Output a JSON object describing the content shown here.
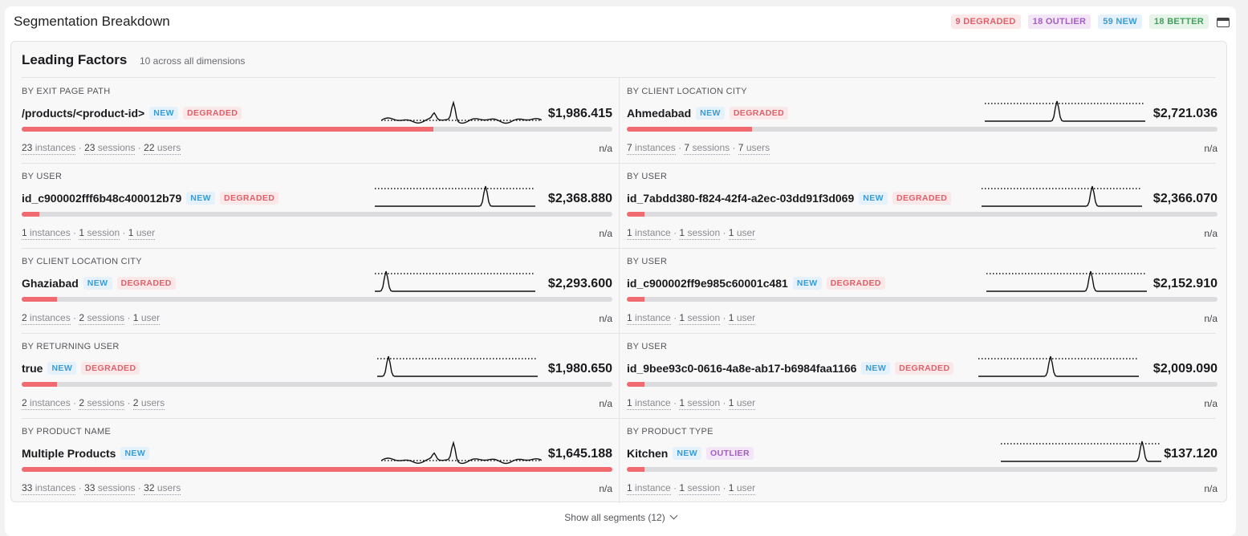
{
  "panel": {
    "title": "Segmentation Breakdown",
    "summary_badges": [
      {
        "label": "9 DEGRADED",
        "kind": "degraded"
      },
      {
        "label": "18 OUTLIER",
        "kind": "outlier"
      },
      {
        "label": "59 NEW",
        "kind": "new"
      },
      {
        "label": "18 BETTER",
        "kind": "better"
      }
    ],
    "collapse_icon": "window-collapse-icon"
  },
  "card": {
    "title": "Leading Factors",
    "subtitle": "10 across all dimensions"
  },
  "factors": [
    {
      "dimension": "BY EXIT PAGE PATH",
      "name": "/products/<product-id>",
      "tags": [
        "NEW",
        "DEGRADED"
      ],
      "value": "$1,986.415",
      "bar_fraction": 0.697,
      "stats": {
        "instances": "23",
        "instances_label": "instances",
        "sessions": "23",
        "sessions_label": "sessions",
        "users": "22",
        "users_label": "users"
      },
      "change": "n/a",
      "spark": "busy"
    },
    {
      "dimension": "BY CLIENT LOCATION CITY",
      "name": "Ahmedabad",
      "tags": [
        "NEW",
        "DEGRADED"
      ],
      "value": "$2,721.036",
      "bar_fraction": 0.212,
      "stats": {
        "instances": "7",
        "instances_label": "instances",
        "sessions": "7",
        "sessions_label": "sessions",
        "users": "7",
        "users_label": "users"
      },
      "change": "n/a",
      "spark": "peak-mid"
    },
    {
      "dimension": "BY USER",
      "name": "id_c900002fff6b48c400012b79",
      "tags": [
        "NEW",
        "DEGRADED"
      ],
      "value": "$2,368.880",
      "bar_fraction": 0.03,
      "stats": {
        "instances": "1",
        "instances_label": "instances",
        "sessions": "1",
        "sessions_label": "session",
        "users": "1",
        "users_label": "user"
      },
      "change": "n/a",
      "spark": "peak-right"
    },
    {
      "dimension": "BY USER",
      "name": "id_7abdd380-f824-42f4-a2ec-03dd91f3d069",
      "tags": [
        "NEW",
        "DEGRADED"
      ],
      "value": "$2,366.070",
      "bar_fraction": 0.03,
      "stats": {
        "instances": "1",
        "instances_label": "instance",
        "sessions": "1",
        "sessions_label": "session",
        "users": "1",
        "users_label": "user"
      },
      "change": "n/a",
      "spark": "peak-right"
    },
    {
      "dimension": "BY CLIENT LOCATION CITY",
      "name": "Ghaziabad",
      "tags": [
        "NEW",
        "DEGRADED"
      ],
      "value": "$2,293.600",
      "bar_fraction": 0.06,
      "stats": {
        "instances": "2",
        "instances_label": "instances",
        "sessions": "2",
        "sessions_label": "sessions",
        "users": "1",
        "users_label": "user"
      },
      "change": "n/a",
      "spark": "peak-left"
    },
    {
      "dimension": "BY USER",
      "name": "id_c900002ff9e985c60001c481",
      "tags": [
        "NEW",
        "DEGRADED"
      ],
      "value": "$2,152.910",
      "bar_fraction": 0.03,
      "stats": {
        "instances": "1",
        "instances_label": "instance",
        "sessions": "1",
        "sessions_label": "session",
        "users": "1",
        "users_label": "user"
      },
      "change": "n/a",
      "spark": "peak-mid-right"
    },
    {
      "dimension": "BY RETURNING USER",
      "name": "true",
      "tags": [
        "NEW",
        "DEGRADED"
      ],
      "value": "$1,980.650",
      "bar_fraction": 0.06,
      "stats": {
        "instances": "2",
        "instances_label": "instances",
        "sessions": "2",
        "sessions_label": "sessions",
        "users": "2",
        "users_label": "users"
      },
      "change": "n/a",
      "spark": "peak-left"
    },
    {
      "dimension": "BY USER",
      "name": "id_9bee93c0-0616-4a8e-ab17-b6984faa1166",
      "tags": [
        "NEW",
        "DEGRADED"
      ],
      "value": "$2,009.090",
      "bar_fraction": 0.03,
      "stats": {
        "instances": "1",
        "instances_label": "instance",
        "sessions": "1",
        "sessions_label": "session",
        "users": "1",
        "users_label": "user"
      },
      "change": "n/a",
      "spark": "peak-mid"
    },
    {
      "dimension": "BY PRODUCT NAME",
      "name": "Multiple Products",
      "tags": [
        "NEW"
      ],
      "value": "$1,645.188",
      "bar_fraction": 1.0,
      "stats": {
        "instances": "33",
        "instances_label": "instances",
        "sessions": "33",
        "sessions_label": "sessions",
        "users": "32",
        "users_label": "users"
      },
      "change": "n/a",
      "spark": "busy"
    },
    {
      "dimension": "BY PRODUCT TYPE",
      "name": "Kitchen",
      "tags": [
        "NEW",
        "OUTLIER"
      ],
      "value": "$137.120",
      "bar_fraction": 0.03,
      "stats": {
        "instances": "1",
        "instances_label": "instance",
        "sessions": "1",
        "sessions_label": "session",
        "users": "1",
        "users_label": "user"
      },
      "change": "n/a",
      "spark": "peak-far-right"
    }
  ],
  "footer": {
    "show_all": "Show all segments (12)",
    "chevron_icon": "chevron-down-icon"
  },
  "colors": {
    "bar_fill": "#f06a6f",
    "bar_track": "#dcdcde",
    "new": "#3b9bd6",
    "degraded": "#e0606a",
    "outlier": "#a35ec0",
    "better": "#41a05a"
  }
}
